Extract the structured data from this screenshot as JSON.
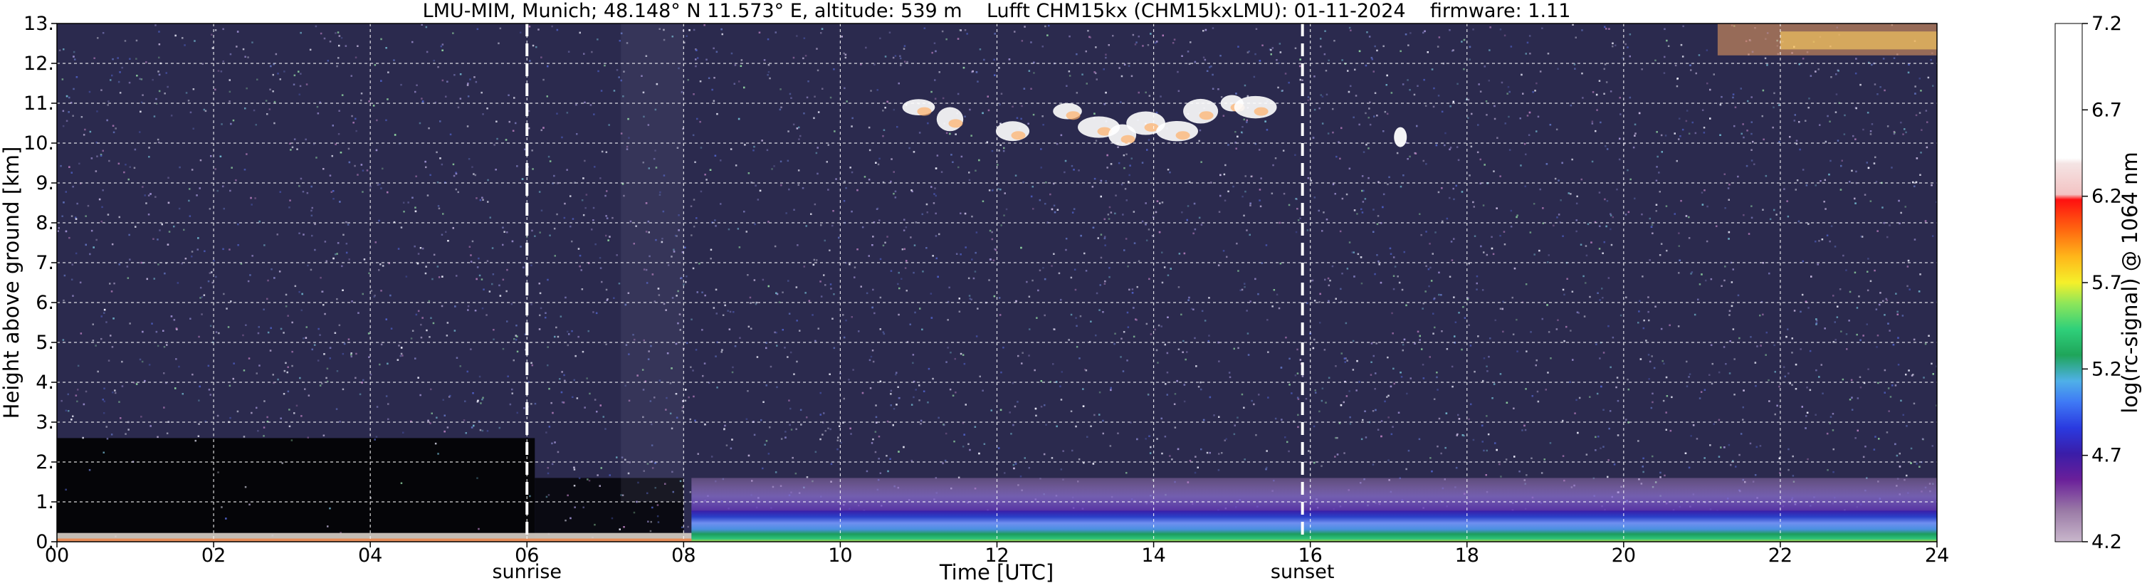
{
  "chart_data": {
    "type": "heatmap",
    "title": "LMU-MIM, Munich; 48.148° N 11.573° E, altitude: 539 m    Lufft CHM15kx (CHM15kxLMU): 01-11-2024    firmware: 1.11",
    "xlabel": "Time [UTC]",
    "ylabel": "Height above ground [km]",
    "xlim": [
      0,
      24
    ],
    "ylim": [
      0,
      13
    ],
    "x_ticks": [
      "00",
      "02",
      "04",
      "06",
      "08",
      "10",
      "12",
      "14",
      "16",
      "18",
      "20",
      "22",
      "24"
    ],
    "y_ticks": [
      "0.",
      "1.",
      "2.",
      "3.",
      "4.",
      "5.",
      "6.",
      "7.",
      "8.",
      "9.",
      "10.",
      "11.",
      "12.",
      "13."
    ],
    "grid": true,
    "event_markers": [
      {
        "label": "sunrise",
        "time": 6.0
      },
      {
        "label": "sunset",
        "time": 15.9
      }
    ],
    "colorbar": {
      "label": "log(rc-signal) @ 1064 nm",
      "range": [
        4.2,
        7.2
      ],
      "ticks": [
        "4.2",
        "4.7",
        "5.2",
        "5.7",
        "6.2",
        "6.7",
        "7.2"
      ]
    },
    "features": [
      {
        "name": "near-surface aerosol layer",
        "x_range": [
          8.1,
          24
        ],
        "y_range": [
          0.0,
          0.8
        ]
      },
      {
        "name": "elevated aerosol layer",
        "x_range": [
          8.1,
          24
        ],
        "y_range": [
          0.8,
          1.6
        ]
      },
      {
        "name": "high cirrus clouds",
        "x_range": [
          10.5,
          15.8
        ],
        "y_range": [
          10.0,
          11.2
        ]
      },
      {
        "name": "isolated cloud",
        "x_range": [
          17.0,
          17.3
        ],
        "y_range": [
          9.9,
          10.4
        ]
      },
      {
        "name": "upper cloud layer",
        "x_range": [
          21.0,
          24
        ],
        "y_range": [
          12.2,
          13.0
        ]
      }
    ]
  }
}
